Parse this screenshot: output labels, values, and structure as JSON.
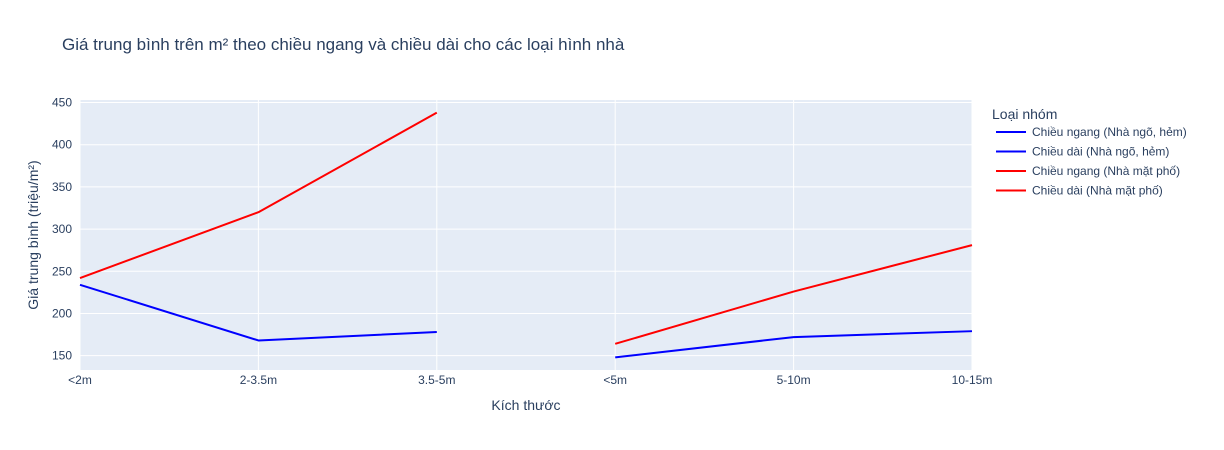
{
  "chart_data": {
    "type": "line",
    "title": "Giá trung bình trên m² theo chiều ngang và chiều dài cho các loại hình nhà",
    "xlabel": "Kích thước",
    "ylabel": "Giá trung bình (triệu/m²)",
    "categories": [
      "<2m",
      "2-3.5m",
      "3.5-5m",
      "<5m",
      "5-10m",
      "10-15m"
    ],
    "ylim": [
      133,
      453
    ],
    "yticks": [
      150,
      200,
      250,
      300,
      350,
      400,
      450
    ],
    "grid": true,
    "legend": {
      "title": "Loại nhóm",
      "placement": "right"
    },
    "series": [
      {
        "name": "Chiều ngang (Nhà ngõ, hẻm)",
        "color": "#0000ff",
        "x": [
          "<2m",
          "2-3.5m",
          "3.5-5m"
        ],
        "values": [
          234,
          168,
          178
        ]
      },
      {
        "name": "Chiều dài (Nhà ngõ, hẻm)",
        "color": "#0000ff",
        "x": [
          "<5m",
          "5-10m",
          "10-15m"
        ],
        "values": [
          148,
          172,
          179
        ]
      },
      {
        "name": "Chiều ngang (Nhà mặt phố)",
        "color": "#ff0000",
        "x": [
          "<2m",
          "2-3.5m",
          "3.5-5m"
        ],
        "values": [
          242,
          320,
          438
        ]
      },
      {
        "name": "Chiều dài (Nhà mặt phố)",
        "color": "#ff0000",
        "x": [
          "<5m",
          "5-10m",
          "10-15m"
        ],
        "values": [
          164,
          226,
          281
        ]
      }
    ]
  }
}
